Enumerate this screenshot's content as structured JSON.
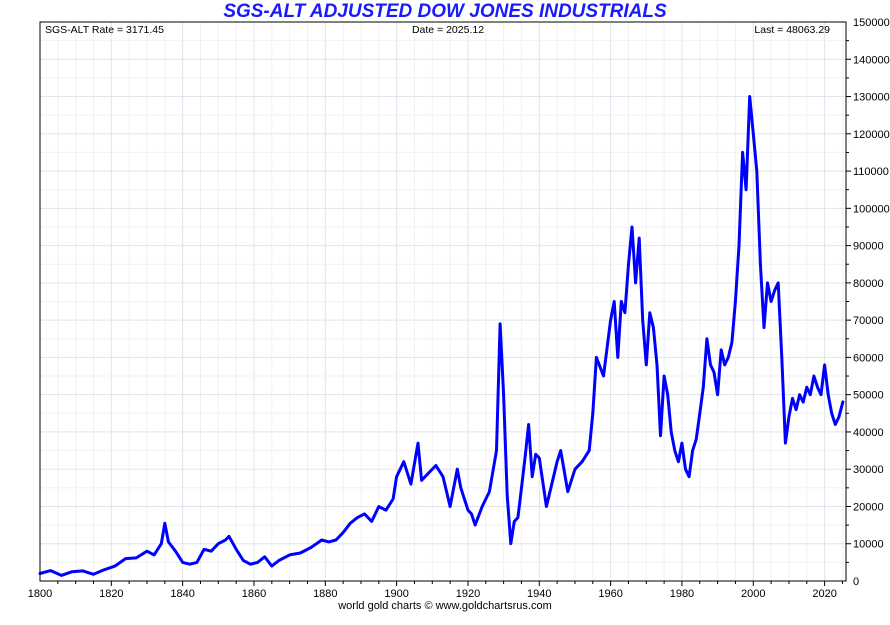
{
  "chart_data": {
    "type": "line",
    "title": "SGS-ALT ADJUSTED DOW JONES INDUSTRIALS",
    "xlabel": "",
    "ylabel": "",
    "xlim": [
      1800,
      2026
    ],
    "ylim": [
      0,
      150000
    ],
    "grid": true,
    "y_axis_side": "right",
    "xticks": [
      1800,
      1820,
      1840,
      1860,
      1880,
      1900,
      1920,
      1940,
      1960,
      1980,
      2000,
      2020
    ],
    "yticks": [
      0,
      10000,
      20000,
      30000,
      40000,
      50000,
      60000,
      70000,
      80000,
      90000,
      100000,
      110000,
      120000,
      130000,
      140000,
      150000
    ],
    "line_color": "#0000ff",
    "annotations": {
      "rate": "SGS-ALT Rate = 3171.45",
      "date": "Date = 2025.12",
      "last": "Last = 48063.29"
    },
    "footer": "world gold charts © www.goldchartsrus.com",
    "series": [
      {
        "x": [
          1800,
          1803,
          1806,
          1809,
          1812,
          1815,
          1818,
          1821,
          1824,
          1827,
          1830,
          1832,
          1834,
          1835,
          1836,
          1838,
          1840,
          1842,
          1844,
          1846,
          1848,
          1850,
          1852,
          1853,
          1855,
          1857,
          1859,
          1861,
          1863,
          1865,
          1867,
          1870,
          1873,
          1876,
          1879,
          1881,
          1883,
          1885,
          1887,
          1889,
          1891,
          1893,
          1895,
          1897,
          1899,
          1900,
          1902,
          1904,
          1906,
          1907,
          1909,
          1911,
          1913,
          1915,
          1917,
          1918,
          1920,
          1921,
          1922,
          1924,
          1926,
          1928,
          1929,
          1930,
          1931,
          1932,
          1933,
          1934,
          1935,
          1936,
          1937,
          1938,
          1939,
          1940,
          1942,
          1943,
          1945,
          1946,
          1948,
          1950,
          1952,
          1954,
          1955,
          1956,
          1958,
          1960,
          1961,
          1962,
          1963,
          1964,
          1965,
          1966,
          1967,
          1968,
          1969,
          1970,
          1971,
          1972,
          1973,
          1974,
          1975,
          1976,
          1977,
          1978,
          1979,
          1980,
          1981,
          1982,
          1983,
          1984,
          1985,
          1986,
          1987,
          1988,
          1989,
          1990,
          1991,
          1992,
          1993,
          1994,
          1995,
          1996,
          1997,
          1998,
          1999,
          2000,
          2001,
          2002,
          2003,
          2004,
          2005,
          2006,
          2007,
          2008,
          2009,
          2010,
          2011,
          2012,
          2013,
          2014,
          2015,
          2016,
          2017,
          2018,
          2019,
          2020,
          2021,
          2022,
          2023,
          2024,
          2025.12
        ],
        "y": [
          2000,
          2800,
          1500,
          2500,
          2700,
          1800,
          3000,
          4000,
          6000,
          6200,
          8000,
          7000,
          10000,
          15500,
          10500,
          8000,
          5000,
          4500,
          5000,
          8500,
          8000,
          10000,
          11000,
          12000,
          8500,
          5500,
          4500,
          5000,
          6500,
          4000,
          5500,
          7000,
          7500,
          9000,
          11000,
          10500,
          11000,
          13000,
          15500,
          17000,
          18000,
          16000,
          20000,
          19000,
          22000,
          28000,
          32000,
          26000,
          37000,
          27000,
          29000,
          31000,
          28000,
          20000,
          30000,
          25000,
          19000,
          18000,
          15000,
          20000,
          24000,
          35000,
          69000,
          50000,
          23000,
          10000,
          16000,
          17000,
          25000,
          33000,
          42000,
          28000,
          34000,
          33000,
          20000,
          24000,
          32000,
          35000,
          24000,
          30000,
          32000,
          35000,
          45000,
          60000,
          55000,
          70000,
          75000,
          60000,
          75000,
          72000,
          85000,
          95000,
          80000,
          92000,
          70000,
          58000,
          72000,
          68000,
          58000,
          39000,
          55000,
          50000,
          40000,
          35000,
          32000,
          37000,
          30000,
          28000,
          35000,
          38000,
          45000,
          52000,
          65000,
          58000,
          56000,
          50000,
          62000,
          58000,
          60000,
          64000,
          75000,
          90000,
          115000,
          105000,
          130000,
          120000,
          110000,
          85000,
          68000,
          80000,
          75000,
          78000,
          80000,
          60000,
          37000,
          44000,
          49000,
          46000,
          50000,
          48000,
          52000,
          50000,
          55000,
          52000,
          50000,
          58000,
          50000,
          45000,
          42000,
          44000,
          48063.29
        ]
      }
    ]
  }
}
